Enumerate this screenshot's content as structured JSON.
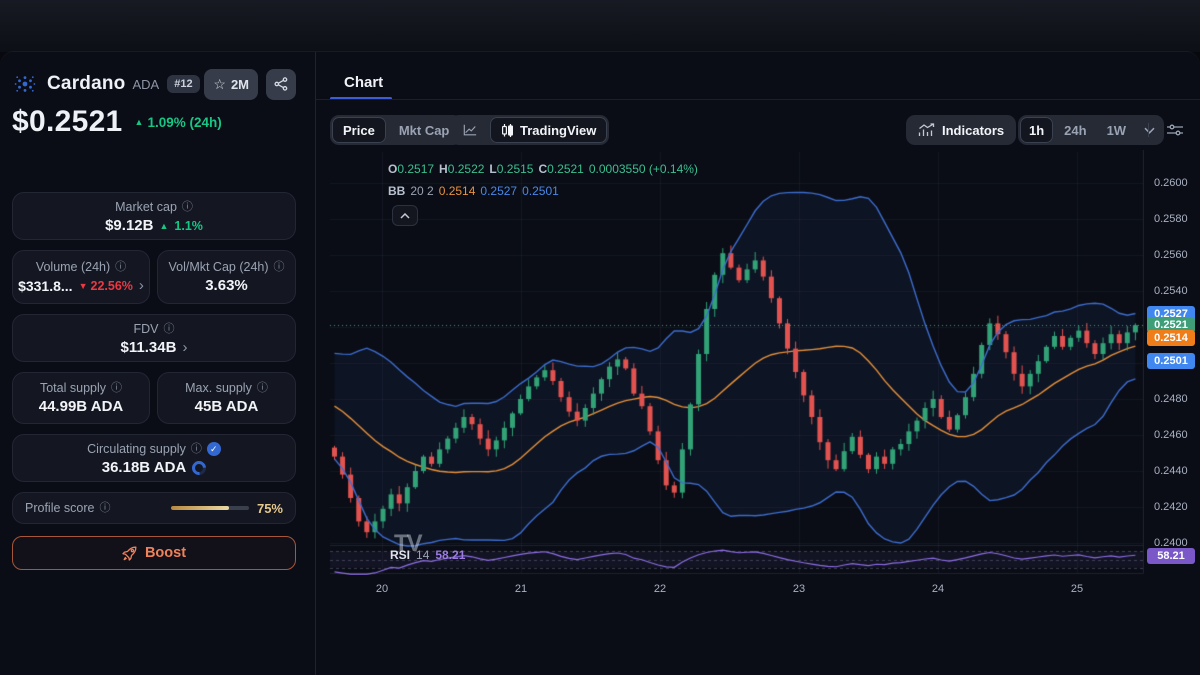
{
  "sidebar": {
    "coin": {
      "name": "Cardano",
      "symbol": "ADA",
      "rank": "#12",
      "watchlist_count": "2M"
    },
    "price": {
      "value": "$0.2521",
      "change": "1.09% (24h)"
    },
    "stats": {
      "market_cap": {
        "label": "Market cap",
        "value": "$9.12B",
        "change": "1.1%"
      },
      "volume": {
        "label": "Volume (24h)",
        "value": "$331.8...",
        "change": "22.56%"
      },
      "vol_mkt_cap": {
        "label": "Vol/Mkt Cap (24h)",
        "value": "3.63%"
      },
      "fdv": {
        "label": "FDV",
        "value": "$11.34B"
      },
      "total_supply": {
        "label": "Total supply",
        "value": "44.99B ADA"
      },
      "max_supply": {
        "label": "Max. supply",
        "value": "45B ADA"
      },
      "circulating_supply": {
        "label": "Circulating supply",
        "value": "36.18B ADA"
      },
      "profile_score": {
        "label": "Profile score",
        "value": "75%",
        "percent": 75
      }
    },
    "boost_label": "Boost"
  },
  "main": {
    "tab": "Chart",
    "toolbar": {
      "price_label": "Price",
      "mktcap_label": "Mkt Cap",
      "tradingview_label": "TradingView",
      "indicators_label": "Indicators",
      "timeframes": [
        "1h",
        "24h",
        "1W"
      ],
      "active_timeframe": "1h"
    },
    "legend": {
      "o_label": "O",
      "o": "0.2517",
      "h_label": "H",
      "h": "0.2522",
      "l_label": "L",
      "l": "0.2515",
      "c_label": "C",
      "c": "0.2521",
      "change": "0.0003550 (+0.14%)",
      "bb_label": "BB",
      "bb_params": "20 2",
      "bb_mid": "0.2514",
      "bb_upper": "0.2527",
      "bb_lower": "0.2501"
    },
    "rsi": {
      "label": "RSI",
      "period": "14",
      "value": "58.21"
    }
  },
  "chart_data": {
    "type": "candlestick",
    "title": "Cardano (ADA) 1h candles with Bollinger Bands (20,2) and RSI(14)",
    "x_labels": [
      "20",
      "21",
      "22",
      "23",
      "24",
      "25"
    ],
    "y_ticks": [
      {
        "label": "0.2600",
        "price": 0.26
      },
      {
        "label": "0.2580",
        "price": 0.258
      },
      {
        "label": "0.2560",
        "price": 0.256
      },
      {
        "label": "0.2540",
        "price": 0.254
      },
      {
        "label": "0.2480",
        "price": 0.248
      },
      {
        "label": "0.2460",
        "price": 0.246
      },
      {
        "label": "0.2440",
        "price": 0.244
      },
      {
        "label": "0.2420",
        "price": 0.242
      },
      {
        "label": "0.2400",
        "price": 0.24
      }
    ],
    "y_min": 0.24,
    "y_max": 0.26,
    "current_price": 0.2521,
    "ohlc_last": {
      "open": 0.2517,
      "high": 0.2522,
      "low": 0.2515,
      "close": 0.2521
    },
    "indicators": {
      "bollinger_period": 20,
      "bollinger_stddev": 2,
      "rsi_period": 14,
      "rsi_value": 58.21
    },
    "pre_closes": [
      0.2502,
      0.2498,
      0.2501,
      0.2494,
      0.249,
      0.2493,
      0.2486,
      0.2482,
      0.2485,
      0.2478,
      0.2474,
      0.2477,
      0.247,
      0.2472,
      0.2466,
      0.2469,
      0.2462,
      0.2465,
      0.2458,
      0.2453
    ],
    "closes": [
      0.2448,
      0.2438,
      0.2425,
      0.2412,
      0.2406,
      0.2412,
      0.2419,
      0.2427,
      0.2422,
      0.2431,
      0.244,
      0.2448,
      0.2444,
      0.2452,
      0.2458,
      0.2464,
      0.247,
      0.2466,
      0.2458,
      0.2452,
      0.2457,
      0.2464,
      0.2472,
      0.248,
      0.2487,
      0.2492,
      0.2496,
      0.249,
      0.2481,
      0.2473,
      0.2468,
      0.2475,
      0.2483,
      0.2491,
      0.2498,
      0.2502,
      0.2497,
      0.2483,
      0.2476,
      0.2462,
      0.2446,
      0.2432,
      0.2428,
      0.2452,
      0.2477,
      0.2505,
      0.253,
      0.2549,
      0.2561,
      0.2553,
      0.2546,
      0.2552,
      0.2557,
      0.2548,
      0.2536,
      0.2522,
      0.2508,
      0.2495,
      0.2482,
      0.247,
      0.2456,
      0.2446,
      0.2441,
      0.2451,
      0.2459,
      0.2449,
      0.2441,
      0.2448,
      0.2444,
      0.2452,
      0.2455,
      0.2462,
      0.2468,
      0.2475,
      0.248,
      0.247,
      0.2463,
      0.2471,
      0.2481,
      0.2494,
      0.251,
      0.2522,
      0.2516,
      0.2506,
      0.2494,
      0.2487,
      0.2494,
      0.2501,
      0.2509,
      0.2515,
      0.2509,
      0.2514,
      0.2518,
      0.2511,
      0.2505,
      0.2511,
      0.2516,
      0.2511,
      0.2517,
      0.2521
    ],
    "axis_badges": [
      {
        "value": "0.2527",
        "price": 0.2527,
        "color": "#4087f0"
      },
      {
        "value": "0.2521",
        "price": 0.2521,
        "color": "#3d9e78"
      },
      {
        "value": "0.2514",
        "price": 0.2514,
        "color": "#ef7d1a"
      },
      {
        "value": "0.2501",
        "price": 0.2501,
        "color": "#4087f0"
      }
    ],
    "rsi_badge": {
      "value": "58.21",
      "color": "#7a58c8"
    },
    "colors": {
      "up": "#32a277",
      "down": "#e25350",
      "band": "#3e6ed0",
      "band_fill": "rgba(62,110,208,0.07)",
      "mid": "#e8923c",
      "rsi": "#8f6fe8",
      "current": "#3d9e78"
    }
  }
}
